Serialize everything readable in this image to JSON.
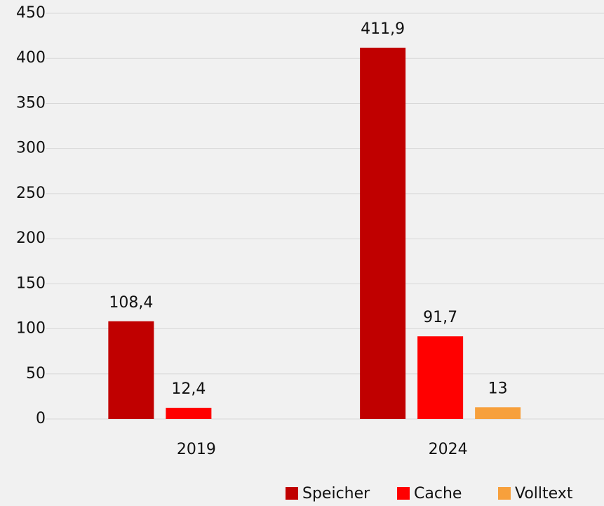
{
  "chart_data": {
    "type": "bar",
    "categories": [
      "2019",
      "2024"
    ],
    "series": [
      {
        "name": "Speicher",
        "color": "#c00000",
        "values": [
          108.4,
          411.9
        ],
        "value_labels": [
          "108,4",
          "411,9"
        ]
      },
      {
        "name": "Cache",
        "color": "#ff0000",
        "values": [
          12.4,
          91.7
        ],
        "value_labels": [
          "12,4",
          "91,7"
        ]
      },
      {
        "name": "Volltext",
        "color": "#f7a03c",
        "values": [
          null,
          13
        ],
        "value_labels": [
          null,
          "13"
        ]
      }
    ],
    "ylim": [
      0,
      450
    ],
    "yticks": [
      0,
      50,
      100,
      150,
      200,
      250,
      300,
      350,
      400,
      450
    ],
    "grid": true,
    "legend": "bottom-right"
  }
}
